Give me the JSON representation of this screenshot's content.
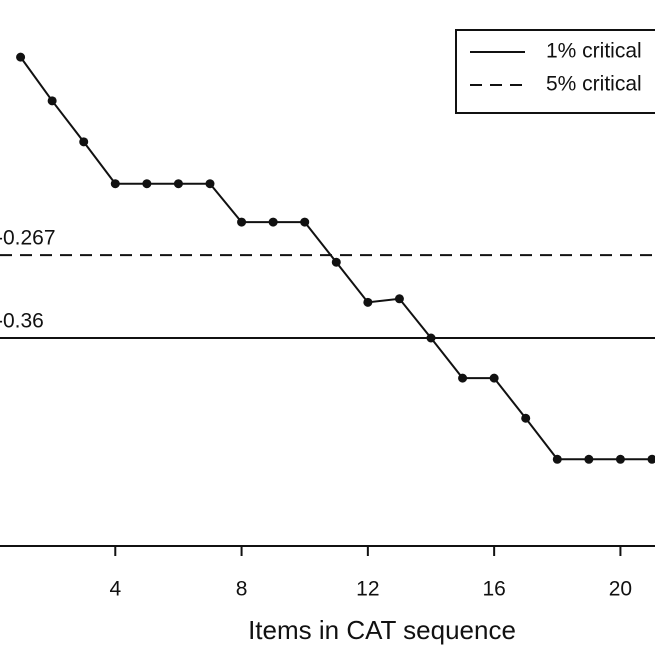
{
  "chart_data": {
    "type": "line",
    "x_label": "Items in CAT sequence",
    "x": [
      1,
      2,
      3,
      4,
      5,
      6,
      7,
      8,
      9,
      10,
      11,
      12,
      13,
      14,
      15,
      16,
      17,
      18,
      19,
      20,
      21
    ],
    "series": [
      {
        "color": "#111111",
        "values": [
          -0.045,
          -0.094,
          -0.14,
          -0.187,
          -0.187,
          -0.187,
          -0.187,
          -0.23,
          -0.23,
          -0.23,
          -0.275,
          -0.32,
          -0.316,
          -0.36,
          -0.405,
          -0.405,
          -0.45,
          -0.496,
          -0.496,
          -0.496,
          -0.496
        ]
      }
    ],
    "reference_lines": [
      {
        "name": "1% critical",
        "value": -0.36,
        "label": "-0.36",
        "style": "solid"
      },
      {
        "name": "5% critical",
        "value": -0.267,
        "label": "-0.267",
        "style": "dashed"
      }
    ],
    "xlim": [
      0,
      21
    ],
    "xticks": [
      4,
      8,
      12,
      16,
      20
    ],
    "ylim": [
      -0.6,
      0
    ],
    "legend": "top-right"
  }
}
